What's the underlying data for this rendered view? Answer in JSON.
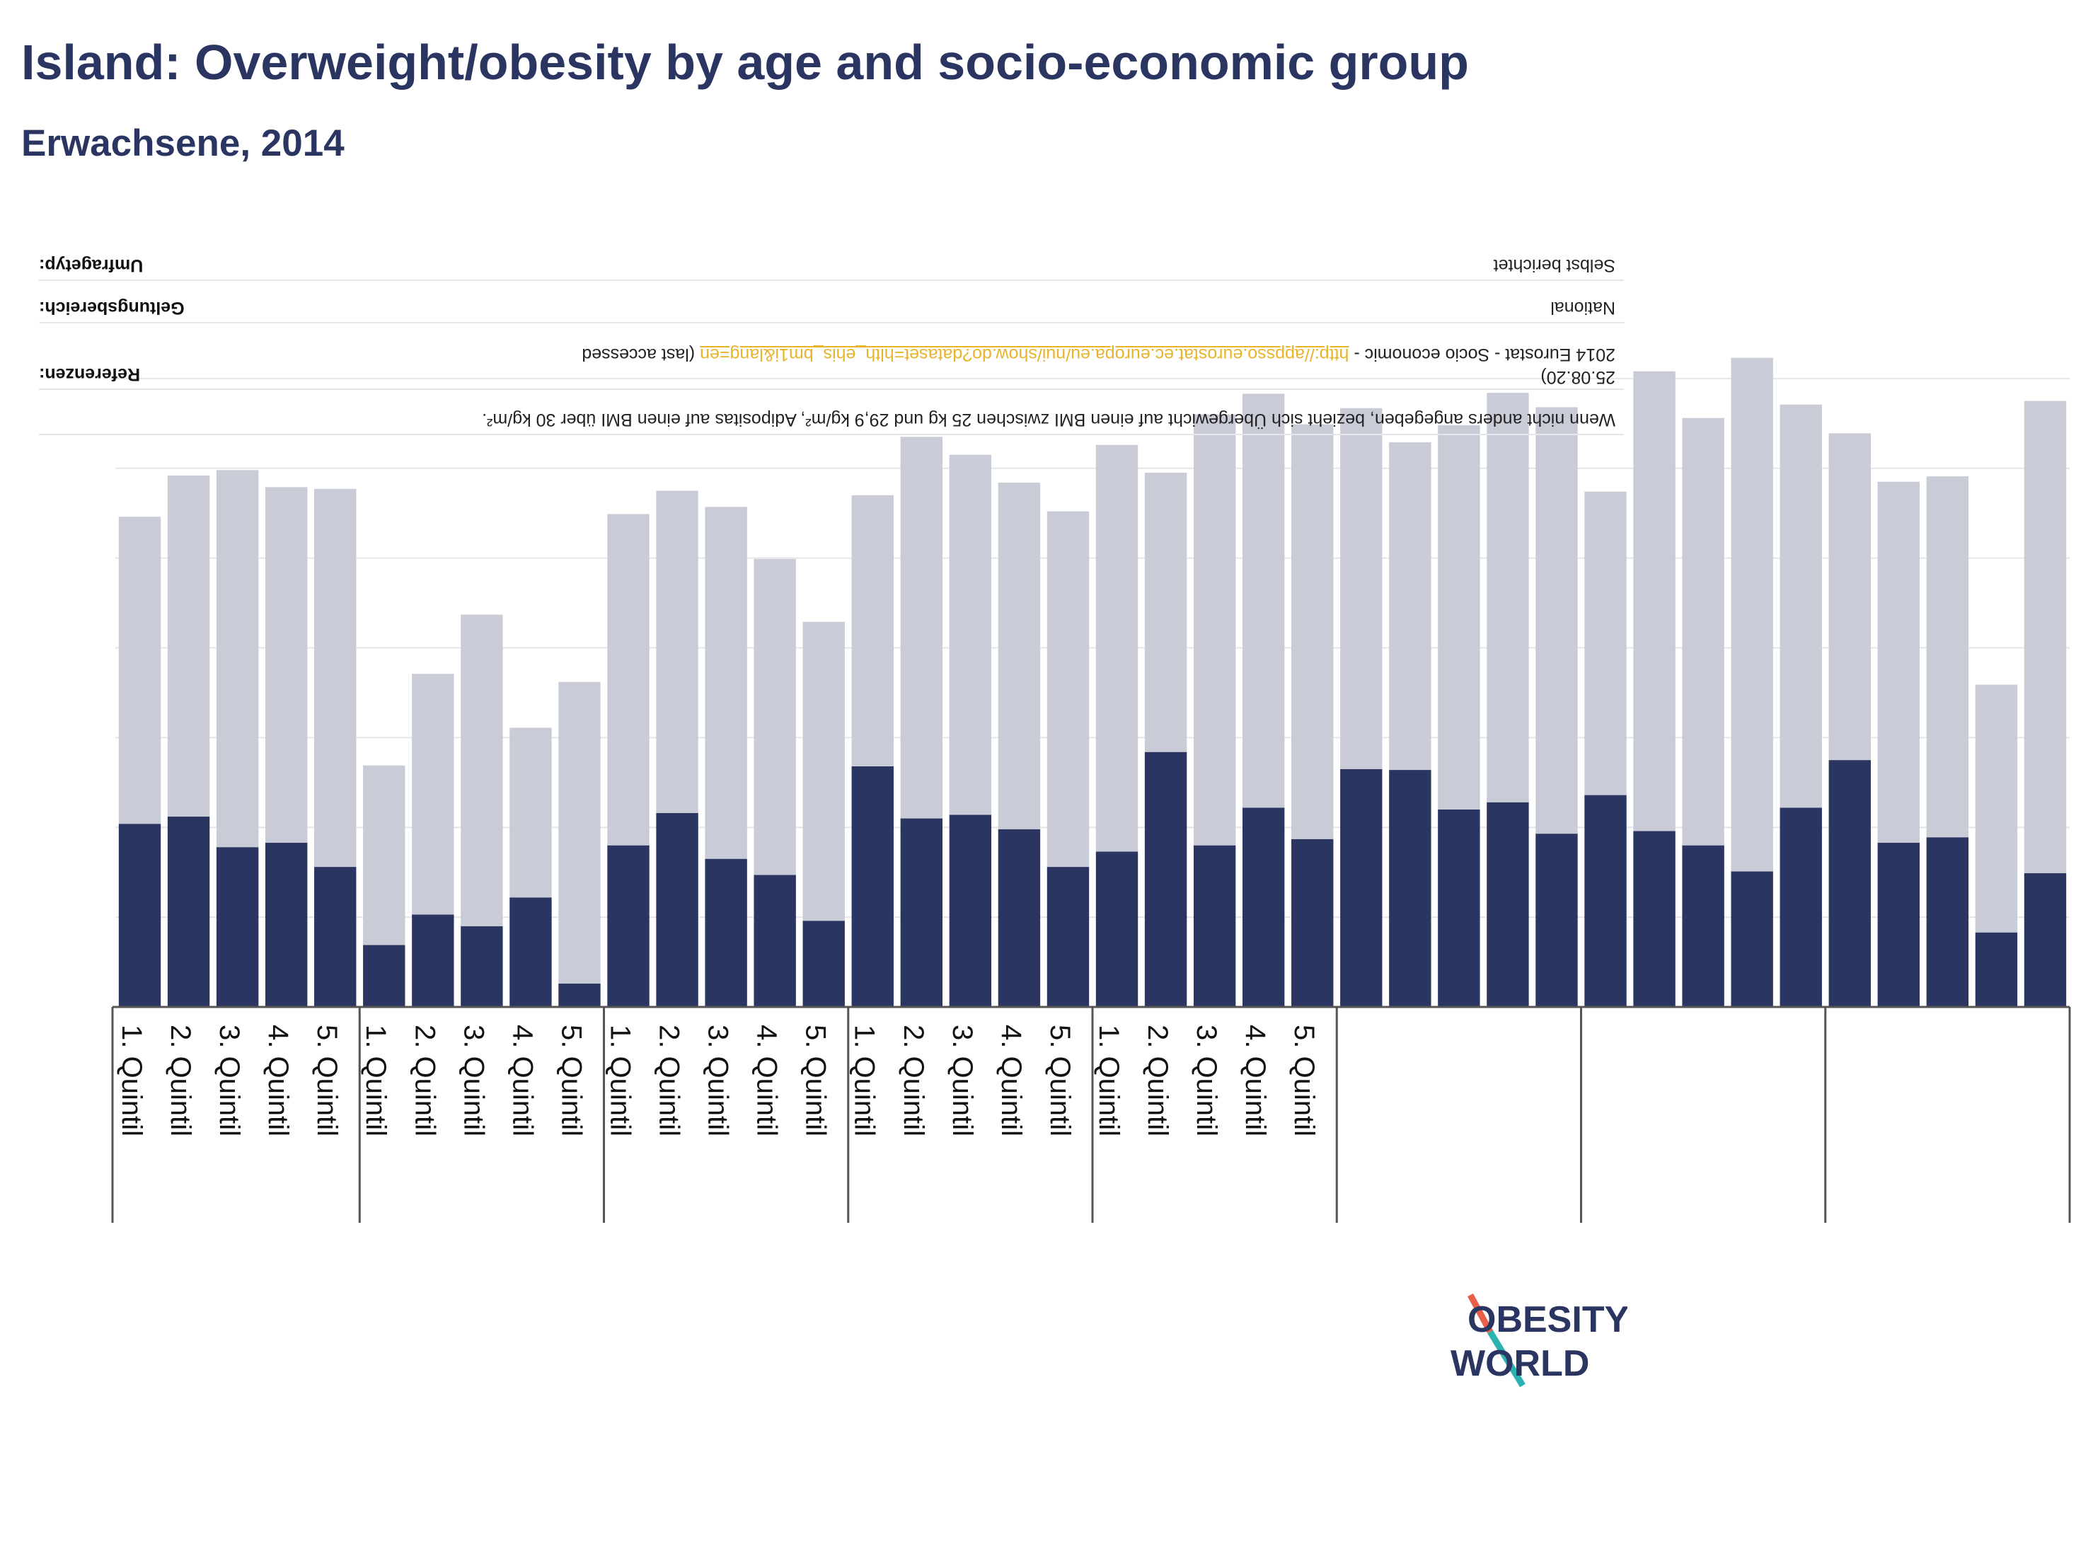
{
  "title": "Island: Overweight/obesity by age and socio-economic group",
  "subtitle": "Erwachsene, 2014",
  "colors": {
    "obesity": "#2a3561",
    "overweight": "#c9cbd6",
    "text": "#2a3561",
    "grid": "#e6e6e6",
    "link": "#e8b52a"
  },
  "footer": {
    "note": "Wenn nicht anders angegeben, bezieht sich Übergewicht auf einen BMI zwischen 25 kg und 29,9 kg/m², Adipositas auf einen BMI über 30 kg/m².",
    "references_label": "Referenzen:",
    "references_text": "2014 Eurostat - Socio economic - ",
    "references_link": "http://appsso.eurostat.ec.europa.eu/nui/show.do?dataset=hlth_ehis_bm1i&lang=en",
    "references_tail": " (last accessed",
    "references_date": "25.08.20)",
    "scope_label": "Geltungsbereich:",
    "scope_value": "National",
    "survey_label": "Umfragetyp:",
    "survey_value": "Selbst berichtet"
  },
  "logo": {
    "line1": "OBESITY",
    "line2": "WORLD"
  },
  "chart_data": {
    "type": "bar",
    "stacked": true,
    "ylim": [
      0,
      80
    ],
    "gridlines": [
      0,
      10,
      20,
      30,
      40,
      50,
      60,
      70
    ],
    "categories": [
      "1. Quintil",
      "2. Quintil",
      "3. Quintil",
      "4. Quintil",
      "5. Quintil",
      "1. Quintil",
      "2. Quintil",
      "3. Quintil",
      "4. Quintil",
      "5. Quintil",
      "1. Quintil",
      "2. Quintil",
      "3. Quintil",
      "4. Quintil",
      "5. Quintil",
      "1. Quintil",
      "2. Quintil",
      "3. Quintil",
      "4. Quintil",
      "5. Quintil",
      "1. Quintil",
      "2. Quintil",
      "3. Quintil",
      "4. Quintil",
      "5. Quintil",
      "",
      "",
      "",
      "",
      "",
      "",
      "",
      "",
      "",
      "",
      "",
      "",
      "",
      "",
      ""
    ],
    "group_boundaries": [
      0,
      5,
      10,
      15,
      20,
      25,
      30,
      35,
      40
    ],
    "series": [
      {
        "values": [
          20.4,
          21.2,
          17.8,
          18.3,
          15.6,
          6.9,
          10.3,
          9.0,
          12.2,
          2.6,
          18.0,
          21.6,
          16.5,
          14.7,
          9.6,
          26.8,
          21.0,
          21.4,
          19.8,
          15.6,
          17.3,
          28.4,
          18.0,
          22.2,
          18.7,
          26.5,
          26.4,
          22.0,
          22.8,
          19.3,
          23.6,
          19.6,
          18.0,
          15.1,
          22.2,
          27.5,
          18.3,
          18.9,
          8.3,
          14.9
        ]
      },
      {
        "values": [
          34.2,
          38.0,
          42.0,
          39.6,
          42.1,
          20.0,
          26.8,
          34.7,
          18.9,
          33.6,
          36.9,
          35.9,
          39.2,
          35.2,
          33.3,
          30.2,
          42.5,
          40.1,
          38.6,
          39.6,
          45.3,
          31.1,
          48.0,
          46.1,
          46.2,
          40.2,
          36.5,
          42.8,
          45.6,
          47.5,
          33.8,
          51.2,
          47.6,
          57.2,
          44.9,
          36.4,
          40.2,
          40.2,
          27.6,
          52.6
        ]
      }
    ]
  }
}
